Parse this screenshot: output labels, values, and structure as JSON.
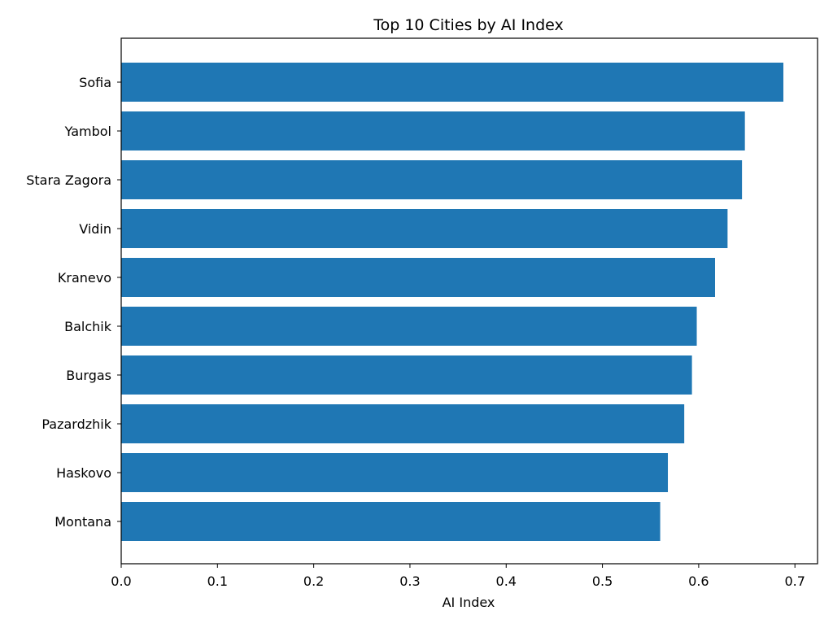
{
  "chart_data": {
    "type": "bar",
    "orientation": "horizontal",
    "title": "Top 10 Cities by AI Index",
    "xlabel": "AI Index",
    "ylabel": "",
    "categories": [
      "Sofia",
      "Yambol",
      "Stara Zagora",
      "Vidin",
      "Kranevo",
      "Balchik",
      "Burgas",
      "Pazardzhik",
      "Haskovo",
      "Montana"
    ],
    "values": [
      0.688,
      0.648,
      0.645,
      0.63,
      0.617,
      0.598,
      0.593,
      0.585,
      0.568,
      0.56
    ],
    "xlim": [
      0.0,
      0.7235
    ],
    "xticks": [
      "0.0",
      "0.1",
      "0.2",
      "0.3",
      "0.4",
      "0.5",
      "0.6",
      "0.7"
    ],
    "grid": false,
    "legend": false,
    "colors": {
      "bar": "#1f77b4",
      "axis": "#000000",
      "background": "#ffffff"
    }
  }
}
